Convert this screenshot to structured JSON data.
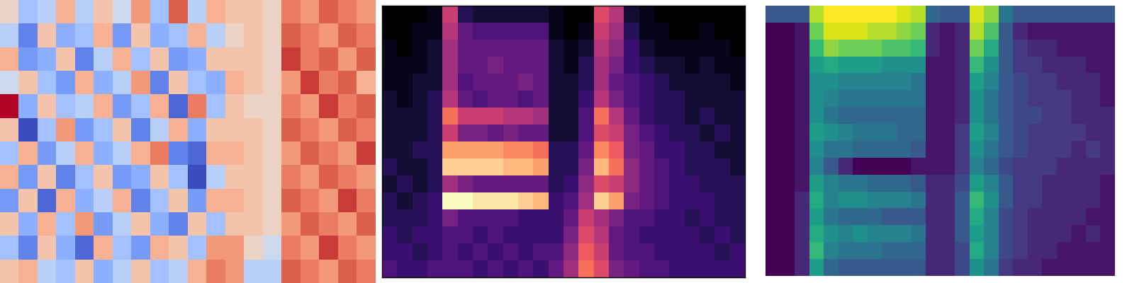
{
  "chart_data": [
    {
      "type": "heatmap",
      "color": "coolwarm",
      "tick_labels": false,
      "cells": [
        [
          0.1,
          -0.3,
          -0.2,
          0.3,
          -0.2,
          0.2,
          -0.1,
          0.4,
          -0.3,
          0.6,
          -0.2,
          0.3,
          0.2,
          0.2,
          0.1,
          0.5,
          0.4,
          0.6,
          0.5,
          0.4
        ],
        [
          -0.2,
          -0.6,
          0.2,
          -0.4,
          -0.3,
          0.3,
          -0.5,
          0.2,
          -0.4,
          -0.3,
          0.3,
          -0.2,
          0.1,
          0.2,
          0.1,
          0.6,
          0.5,
          0.4,
          0.6,
          0.5
        ],
        [
          0.3,
          -0.5,
          -0.4,
          0.2,
          -0.6,
          -0.2,
          0.3,
          -0.3,
          0.2,
          -0.5,
          -0.4,
          0.2,
          0.2,
          0.2,
          0.1,
          0.7,
          0.5,
          0.6,
          0.4,
          0.6
        ],
        [
          -0.1,
          0.2,
          -0.3,
          -0.5,
          0.3,
          -0.4,
          -0.2,
          0.4,
          -0.6,
          0.2,
          -0.3,
          -0.4,
          0.3,
          0.2,
          0.1,
          0.4,
          0.7,
          0.5,
          0.6,
          0.3
        ],
        [
          0.8,
          -0.4,
          0.2,
          -0.3,
          -0.2,
          0.3,
          -0.5,
          -0.3,
          0.3,
          -0.7,
          0.5,
          -0.3,
          0.2,
          0.1,
          0.1,
          0.5,
          0.4,
          0.7,
          0.5,
          0.6
        ],
        [
          0.2,
          -0.8,
          -0.3,
          0.4,
          -0.5,
          -0.3,
          0.2,
          -0.6,
          -0.2,
          0.3,
          -0.4,
          0.2,
          0.2,
          0.2,
          0.1,
          0.6,
          0.5,
          0.4,
          0.6,
          0.5
        ],
        [
          -0.3,
          0.3,
          -0.5,
          -0.2,
          0.3,
          -0.4,
          -0.2,
          0.3,
          0.5,
          -0.6,
          -0.7,
          0.3,
          0.3,
          0.2,
          0.1,
          0.4,
          0.6,
          0.5,
          0.4,
          0.7
        ],
        [
          0.3,
          -0.5,
          0.2,
          -0.6,
          -0.3,
          0.2,
          -0.5,
          -0.4,
          0.2,
          -0.3,
          -0.8,
          -0.2,
          0.2,
          0.2,
          0.1,
          0.5,
          0.4,
          0.6,
          0.5,
          0.4
        ],
        [
          -0.5,
          0.2,
          -0.7,
          0.3,
          -0.4,
          -0.2,
          0.3,
          -0.6,
          -0.3,
          0.2,
          -0.5,
          0.3,
          0.3,
          0.2,
          0.1,
          0.6,
          0.5,
          0.4,
          0.7,
          0.5
        ],
        [
          0.2,
          -0.4,
          0.3,
          -0.3,
          0.4,
          -0.5,
          -0.2,
          0.2,
          -0.4,
          -0.6,
          0.2,
          -0.3,
          0.2,
          0.2,
          0.1,
          0.4,
          0.6,
          0.5,
          0.4,
          0.6
        ],
        [
          -0.3,
          -0.6,
          0.2,
          -0.4,
          -0.7,
          0.3,
          -0.3,
          -0.5,
          0.3,
          0.2,
          -0.3,
          0.4,
          0.4,
          0.1,
          -0.1,
          0.5,
          0.4,
          0.7,
          0.5,
          0.4
        ],
        [
          0.2,
          0.3,
          -0.2,
          -0.3,
          0.2,
          -0.4,
          -0.2,
          0.2,
          -0.3,
          -0.2,
          0.3,
          0.5,
          0.4,
          -0.2,
          -0.2,
          0.6,
          0.5,
          0.4,
          0.6,
          0.5
        ]
      ]
    },
    {
      "type": "heatmap",
      "color": "magma",
      "tick_labels": false,
      "cells": [
        [
          0.0,
          0.0,
          0.0,
          0.05,
          0.55,
          0.15,
          0.1,
          0.1,
          0.1,
          0.1,
          0.1,
          0.05,
          0.0,
          0.0,
          0.6,
          0.5,
          0.1,
          0.05,
          0.0,
          0.0,
          0.0,
          0.0,
          0.0,
          0.0
        ],
        [
          0.0,
          0.0,
          0.05,
          0.05,
          0.5,
          0.3,
          0.25,
          0.25,
          0.25,
          0.25,
          0.25,
          0.05,
          0.0,
          0.05,
          0.55,
          0.45,
          0.15,
          0.05,
          0.05,
          0.0,
          0.0,
          0.05,
          0.0,
          0.0
        ],
        [
          0.05,
          0.0,
          0.05,
          0.1,
          0.45,
          0.3,
          0.3,
          0.3,
          0.3,
          0.3,
          0.3,
          0.1,
          0.05,
          0.1,
          0.5,
          0.4,
          0.2,
          0.1,
          0.05,
          0.05,
          0.05,
          0.05,
          0.05,
          0.0
        ],
        [
          0.05,
          0.05,
          0.05,
          0.1,
          0.45,
          0.3,
          0.3,
          0.35,
          0.3,
          0.3,
          0.3,
          0.1,
          0.05,
          0.15,
          0.45,
          0.35,
          0.2,
          0.15,
          0.1,
          0.1,
          0.05,
          0.1,
          0.05,
          0.05
        ],
        [
          0.05,
          0.05,
          0.1,
          0.1,
          0.45,
          0.25,
          0.3,
          0.3,
          0.3,
          0.35,
          0.3,
          0.1,
          0.1,
          0.15,
          0.45,
          0.3,
          0.25,
          0.2,
          0.15,
          0.1,
          0.1,
          0.1,
          0.1,
          0.05
        ],
        [
          0.1,
          0.05,
          0.1,
          0.15,
          0.5,
          0.3,
          0.25,
          0.3,
          0.3,
          0.25,
          0.3,
          0.1,
          0.1,
          0.2,
          0.5,
          0.35,
          0.25,
          0.2,
          0.15,
          0.15,
          0.1,
          0.1,
          0.1,
          0.1
        ],
        [
          0.1,
          0.1,
          0.1,
          0.15,
          0.7,
          0.55,
          0.55,
          0.55,
          0.5,
          0.5,
          0.45,
          0.1,
          0.1,
          0.25,
          0.7,
          0.5,
          0.3,
          0.2,
          0.15,
          0.15,
          0.1,
          0.15,
          0.1,
          0.1
        ],
        [
          0.1,
          0.1,
          0.1,
          0.15,
          0.55,
          0.35,
          0.35,
          0.3,
          0.35,
          0.3,
          0.3,
          0.1,
          0.1,
          0.25,
          0.6,
          0.55,
          0.35,
          0.25,
          0.2,
          0.15,
          0.15,
          0.1,
          0.15,
          0.1
        ],
        [
          0.1,
          0.1,
          0.15,
          0.15,
          0.8,
          0.8,
          0.8,
          0.8,
          0.75,
          0.75,
          0.7,
          0.15,
          0.15,
          0.3,
          0.75,
          0.65,
          0.35,
          0.3,
          0.2,
          0.2,
          0.15,
          0.15,
          0.1,
          0.1
        ],
        [
          0.15,
          0.1,
          0.1,
          0.15,
          0.9,
          0.9,
          0.9,
          0.9,
          0.85,
          0.85,
          0.8,
          0.15,
          0.15,
          0.35,
          0.85,
          0.7,
          0.4,
          0.3,
          0.25,
          0.2,
          0.15,
          0.15,
          0.15,
          0.1
        ],
        [
          0.1,
          0.15,
          0.1,
          0.15,
          0.45,
          0.35,
          0.3,
          0.3,
          0.3,
          0.3,
          0.3,
          0.15,
          0.2,
          0.4,
          0.6,
          0.55,
          0.4,
          0.3,
          0.25,
          0.2,
          0.2,
          0.15,
          0.15,
          0.15
        ],
        [
          0.15,
          0.1,
          0.15,
          0.2,
          1.0,
          1.0,
          0.95,
          0.95,
          0.95,
          0.9,
          0.85,
          0.2,
          0.25,
          0.45,
          0.9,
          0.8,
          0.35,
          0.3,
          0.25,
          0.2,
          0.2,
          0.2,
          0.15,
          0.15
        ],
        [
          0.15,
          0.15,
          0.15,
          0.2,
          0.35,
          0.25,
          0.25,
          0.25,
          0.25,
          0.2,
          0.2,
          0.2,
          0.3,
          0.55,
          0.45,
          0.35,
          0.25,
          0.25,
          0.2,
          0.2,
          0.15,
          0.2,
          0.15,
          0.15
        ],
        [
          0.2,
          0.15,
          0.2,
          0.2,
          0.25,
          0.25,
          0.2,
          0.25,
          0.2,
          0.2,
          0.2,
          0.2,
          0.35,
          0.6,
          0.5,
          0.3,
          0.25,
          0.2,
          0.2,
          0.2,
          0.2,
          0.15,
          0.2,
          0.15
        ],
        [
          0.2,
          0.2,
          0.15,
          0.2,
          0.25,
          0.2,
          0.25,
          0.2,
          0.25,
          0.2,
          0.25,
          0.25,
          0.4,
          0.65,
          0.55,
          0.3,
          0.25,
          0.25,
          0.2,
          0.2,
          0.2,
          0.2,
          0.15,
          0.2
        ],
        [
          0.25,
          0.2,
          0.2,
          0.25,
          0.25,
          0.25,
          0.2,
          0.25,
          0.2,
          0.25,
          0.2,
          0.3,
          0.45,
          0.7,
          0.6,
          0.35,
          0.3,
          0.25,
          0.25,
          0.2,
          0.2,
          0.2,
          0.2,
          0.2
        ]
      ]
    },
    {
      "type": "heatmap",
      "color": "viridis",
      "tick_labels": false,
      "cells": [
        [
          0.3,
          0.3,
          0.3,
          0.85,
          0.95,
          0.95,
          0.95,
          0.95,
          0.95,
          0.9,
          0.85,
          0.35,
          0.3,
          0.3,
          0.9,
          0.8,
          0.4,
          0.3,
          0.3,
          0.3,
          0.3,
          0.3,
          0.3,
          0.3
        ],
        [
          0.05,
          0.05,
          0.1,
          0.75,
          0.9,
          0.9,
          0.9,
          0.85,
          0.85,
          0.8,
          0.75,
          0.15,
          0.1,
          0.15,
          0.85,
          0.7,
          0.3,
          0.15,
          0.1,
          0.1,
          0.1,
          0.1,
          0.1,
          0.1
        ],
        [
          0.05,
          0.05,
          0.1,
          0.65,
          0.8,
          0.75,
          0.75,
          0.75,
          0.7,
          0.7,
          0.65,
          0.15,
          0.1,
          0.15,
          0.75,
          0.6,
          0.3,
          0.2,
          0.15,
          0.15,
          0.1,
          0.1,
          0.1,
          0.1
        ],
        [
          0.05,
          0.05,
          0.1,
          0.55,
          0.6,
          0.55,
          0.55,
          0.55,
          0.5,
          0.5,
          0.5,
          0.1,
          0.1,
          0.15,
          0.65,
          0.5,
          0.3,
          0.2,
          0.2,
          0.15,
          0.15,
          0.15,
          0.1,
          0.1
        ],
        [
          0.05,
          0.05,
          0.1,
          0.5,
          0.5,
          0.45,
          0.45,
          0.45,
          0.45,
          0.45,
          0.4,
          0.1,
          0.1,
          0.15,
          0.55,
          0.45,
          0.3,
          0.25,
          0.2,
          0.2,
          0.15,
          0.15,
          0.15,
          0.1
        ],
        [
          0.05,
          0.05,
          0.1,
          0.5,
          0.45,
          0.4,
          0.4,
          0.4,
          0.4,
          0.4,
          0.4,
          0.1,
          0.1,
          0.15,
          0.5,
          0.4,
          0.3,
          0.25,
          0.2,
          0.2,
          0.2,
          0.15,
          0.15,
          0.1
        ],
        [
          0.05,
          0.05,
          0.1,
          0.5,
          0.4,
          0.35,
          0.35,
          0.35,
          0.35,
          0.35,
          0.35,
          0.1,
          0.1,
          0.15,
          0.5,
          0.4,
          0.3,
          0.25,
          0.25,
          0.2,
          0.2,
          0.15,
          0.15,
          0.15
        ],
        [
          0.05,
          0.05,
          0.1,
          0.55,
          0.5,
          0.45,
          0.4,
          0.4,
          0.4,
          0.35,
          0.35,
          0.1,
          0.1,
          0.2,
          0.55,
          0.45,
          0.3,
          0.25,
          0.2,
          0.2,
          0.2,
          0.2,
          0.15,
          0.15
        ],
        [
          0.05,
          0.05,
          0.1,
          0.5,
          0.4,
          0.4,
          0.35,
          0.35,
          0.35,
          0.35,
          0.3,
          0.1,
          0.1,
          0.2,
          0.5,
          0.4,
          0.3,
          0.25,
          0.2,
          0.2,
          0.2,
          0.15,
          0.2,
          0.15
        ],
        [
          0.05,
          0.05,
          0.1,
          0.45,
          0.3,
          0.15,
          0.05,
          0.05,
          0.05,
          0.05,
          0.1,
          0.1,
          0.1,
          0.2,
          0.45,
          0.35,
          0.25,
          0.2,
          0.2,
          0.2,
          0.15,
          0.15,
          0.15,
          0.15
        ],
        [
          0.05,
          0.05,
          0.1,
          0.55,
          0.45,
          0.4,
          0.4,
          0.35,
          0.35,
          0.35,
          0.3,
          0.15,
          0.15,
          0.25,
          0.55,
          0.45,
          0.3,
          0.2,
          0.2,
          0.15,
          0.15,
          0.15,
          0.15,
          0.1
        ],
        [
          0.05,
          0.05,
          0.15,
          0.6,
          0.45,
          0.5,
          0.5,
          0.45,
          0.45,
          0.45,
          0.4,
          0.15,
          0.15,
          0.3,
          0.65,
          0.5,
          0.3,
          0.2,
          0.2,
          0.15,
          0.15,
          0.15,
          0.15,
          0.1
        ],
        [
          0.05,
          0.05,
          0.15,
          0.55,
          0.4,
          0.35,
          0.35,
          0.35,
          0.3,
          0.3,
          0.3,
          0.15,
          0.15,
          0.3,
          0.6,
          0.45,
          0.25,
          0.2,
          0.15,
          0.15,
          0.15,
          0.15,
          0.1,
          0.1
        ],
        [
          0.05,
          0.05,
          0.15,
          0.6,
          0.5,
          0.45,
          0.5,
          0.45,
          0.45,
          0.45,
          0.4,
          0.15,
          0.15,
          0.3,
          0.55,
          0.45,
          0.25,
          0.2,
          0.15,
          0.15,
          0.15,
          0.1,
          0.15,
          0.1
        ],
        [
          0.05,
          0.05,
          0.15,
          0.65,
          0.45,
          0.4,
          0.4,
          0.4,
          0.35,
          0.35,
          0.35,
          0.15,
          0.15,
          0.25,
          0.6,
          0.45,
          0.25,
          0.2,
          0.15,
          0.15,
          0.1,
          0.1,
          0.1,
          0.1
        ],
        [
          0.05,
          0.05,
          0.15,
          0.55,
          0.35,
          0.3,
          0.3,
          0.3,
          0.3,
          0.3,
          0.3,
          0.15,
          0.15,
          0.25,
          0.5,
          0.4,
          0.2,
          0.15,
          0.15,
          0.1,
          0.1,
          0.1,
          0.1,
          0.1
        ]
      ]
    }
  ]
}
